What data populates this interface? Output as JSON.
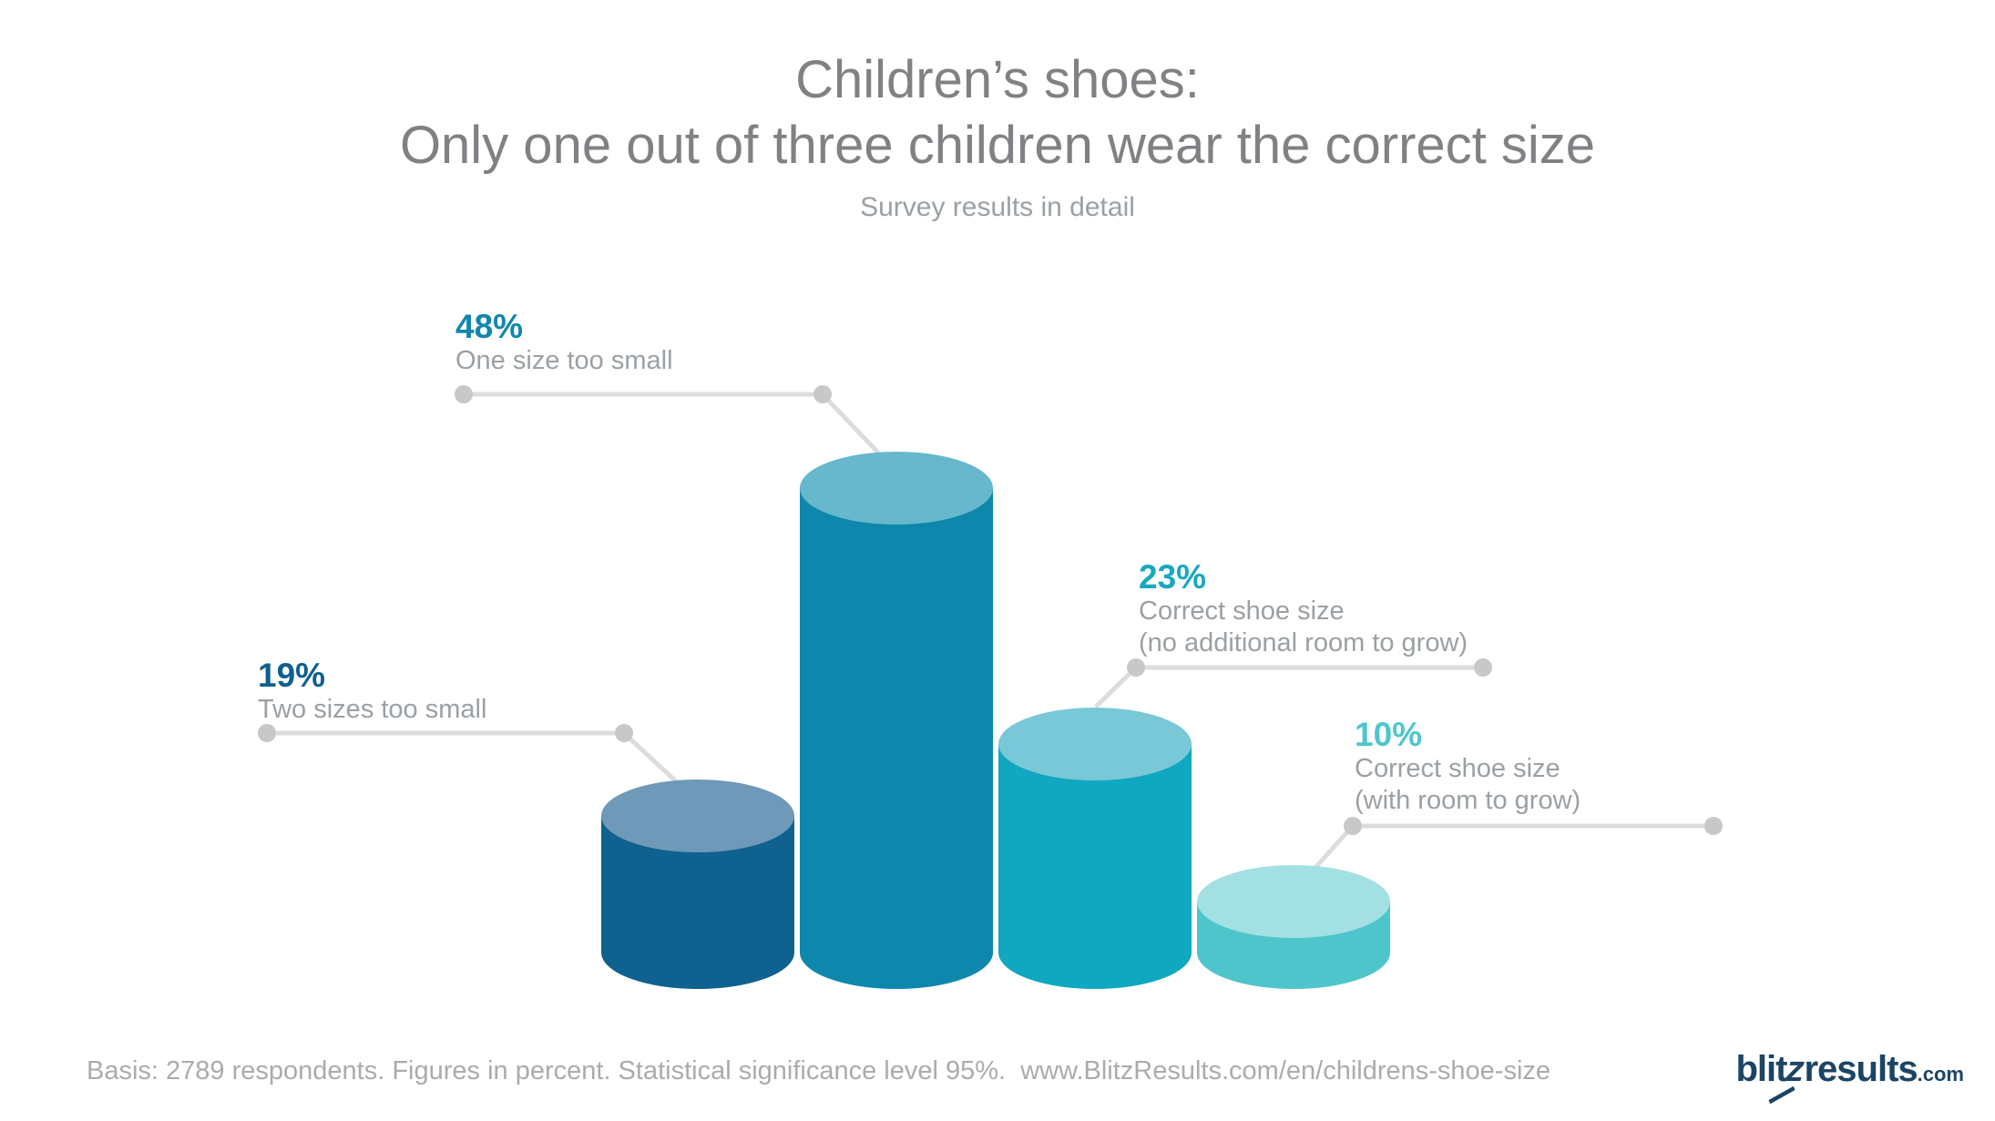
{
  "header": {
    "title_line1": "Children’s shoes:",
    "title_line2": "Only one out of three children wear the correct size",
    "subtitle": "Survey results in detail"
  },
  "chart_data": {
    "type": "bar",
    "style": "3d-cylinder-pictorial",
    "title": "Children’s shoes: Only one out of three children wear the correct size",
    "subtitle": "Survey results in detail",
    "unit": "percent",
    "categories": [
      "Two sizes too small",
      "One size too small",
      "Correct shoe size (no additional room to grow)",
      "Correct shoe size (with room to grow)"
    ],
    "values": [
      19,
      48,
      23,
      10
    ],
    "bars": [
      {
        "label": "Two sizes too small",
        "value": 19,
        "body_color": "#0f618f",
        "top_color": "#6f99b8"
      },
      {
        "label": "One size too small",
        "value": 48,
        "body_color": "#0e87ac",
        "top_color": "#67b7cd"
      },
      {
        "label": "Correct shoe size (no additional room to grow)",
        "value": 23,
        "body_color": "#10a7c0",
        "top_color": "#79c8d8"
      },
      {
        "label": "Correct shoe size (with room to grow)",
        "value": 10,
        "body_color": "#4ec5cb",
        "top_color": "#a3e0e3"
      }
    ],
    "callouts": [
      {
        "pct": "19%",
        "color": "#0e608f",
        "lines": [
          "Two sizes too small"
        ]
      },
      {
        "pct": "48%",
        "color": "#1287ad",
        "lines": [
          "One size too small"
        ]
      },
      {
        "pct": "23%",
        "color": "#18a7c1",
        "lines": [
          "Correct shoe size",
          "(no additional room to grow)"
        ]
      },
      {
        "pct": "10%",
        "color": "#4fc6cc",
        "lines": [
          "Correct shoe size",
          "(with room to grow)"
        ]
      }
    ],
    "legend_position": "none",
    "grid": false,
    "axes_visible": false
  },
  "footer": {
    "note": "Basis: 2789 respondents. Figures in percent. Statistical significance level 95%.  www.BlitzResults.com/en/childrens-shoe-size",
    "logo_main": "blitzresults",
    "logo_z": "z",
    "logo_suffix": ".com"
  },
  "colors": {
    "background": "#ffffff",
    "title_text": "#808184",
    "subtitle_text": "#9aa0a4",
    "label_text": "#9aa0a4",
    "footer_text": "#a9acaf",
    "callout_line": "#dcdcdc",
    "callout_dot": "#c8c8c8",
    "logo_navy": "#1b4465"
  }
}
